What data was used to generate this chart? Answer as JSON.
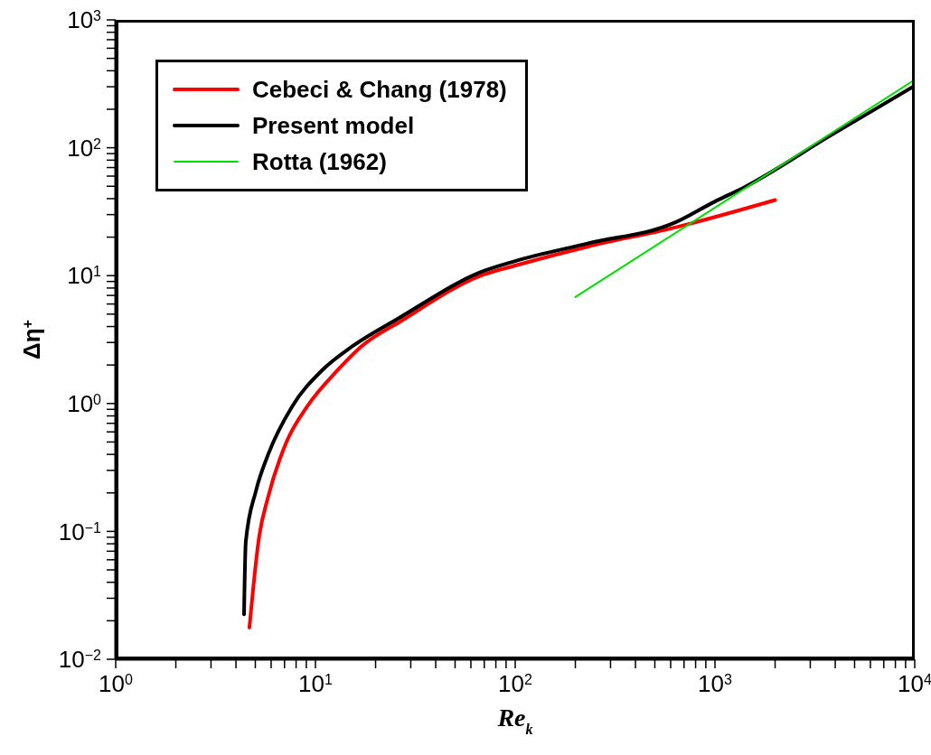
{
  "chart_data": {
    "type": "line",
    "xlabel": "Re$_{k}$",
    "ylabel": "Δη$^{+}$",
    "log": "xy",
    "grid": false,
    "legend": "top left",
    "marker": "none",
    "line_style": "solid",
    "xlim": [
      1,
      10000
    ],
    "ylim": [
      0.01,
      1000
    ],
    "xticks": [
      {
        "value": 1,
        "label": "10$^{0}$"
      },
      {
        "value": 2,
        "label": null
      },
      {
        "value": 3,
        "label": null
      },
      {
        "value": 4,
        "label": null
      },
      {
        "value": 5,
        "label": null
      },
      {
        "value": 6,
        "label": null
      },
      {
        "value": 7,
        "label": null
      },
      {
        "value": 8,
        "label": null
      },
      {
        "value": 9,
        "label": null
      },
      {
        "value": 10,
        "label": "10$^{1}$"
      },
      {
        "value": 20,
        "label": null
      },
      {
        "value": 30,
        "label": null
      },
      {
        "value": 40,
        "label": null
      },
      {
        "value": 50,
        "label": null
      },
      {
        "value": 60,
        "label": null
      },
      {
        "value": 70,
        "label": null
      },
      {
        "value": 80,
        "label": null
      },
      {
        "value": 90,
        "label": null
      },
      {
        "value": 100,
        "label": "10$^{2}$"
      },
      {
        "value": 200,
        "label": null
      },
      {
        "value": 300,
        "label": null
      },
      {
        "value": 400,
        "label": null
      },
      {
        "value": 500,
        "label": null
      },
      {
        "value": 600,
        "label": null
      },
      {
        "value": 700,
        "label": null
      },
      {
        "value": 800,
        "label": null
      },
      {
        "value": 900,
        "label": null
      },
      {
        "value": 1000,
        "label": "10$^{3}$"
      },
      {
        "value": 2000,
        "label": null
      },
      {
        "value": 3000,
        "label": null
      },
      {
        "value": 4000,
        "label": null
      },
      {
        "value": 5000,
        "label": null
      },
      {
        "value": 6000,
        "label": null
      },
      {
        "value": 7000,
        "label": null
      },
      {
        "value": 8000,
        "label": null
      },
      {
        "value": 9000,
        "label": null
      },
      {
        "value": 10000,
        "label": "10$^{4}$"
      }
    ],
    "yticks": [
      {
        "value": 0.01,
        "label": "10$^{−2}$"
      },
      {
        "value": 0.02,
        "label": null
      },
      {
        "value": 0.03,
        "label": null
      },
      {
        "value": 0.04,
        "label": null
      },
      {
        "value": 0.05,
        "label": null
      },
      {
        "value": 0.06,
        "label": null
      },
      {
        "value": 0.07,
        "label": null
      },
      {
        "value": 0.08,
        "label": null
      },
      {
        "value": 0.09,
        "label": null
      },
      {
        "value": 0.1,
        "label": "10$^{−1}$"
      },
      {
        "value": 0.2,
        "label": null
      },
      {
        "value": 0.3,
        "label": null
      },
      {
        "value": 0.4,
        "label": null
      },
      {
        "value": 0.5,
        "label": null
      },
      {
        "value": 0.6,
        "label": null
      },
      {
        "value": 0.7,
        "label": null
      },
      {
        "value": 0.8,
        "label": null
      },
      {
        "value": 0.9,
        "label": null
      },
      {
        "value": 1,
        "label": "10$^{0}$"
      },
      {
        "value": 2,
        "label": null
      },
      {
        "value": 3,
        "label": null
      },
      {
        "value": 4,
        "label": null
      },
      {
        "value": 5,
        "label": null
      },
      {
        "value": 6,
        "label": null
      },
      {
        "value": 7,
        "label": null
      },
      {
        "value": 8,
        "label": null
      },
      {
        "value": 9,
        "label": null
      },
      {
        "value": 10,
        "label": "10$^{1}$"
      },
      {
        "value": 20,
        "label": null
      },
      {
        "value": 30,
        "label": null
      },
      {
        "value": 40,
        "label": null
      },
      {
        "value": 50,
        "label": null
      },
      {
        "value": 60,
        "label": null
      },
      {
        "value": 70,
        "label": null
      },
      {
        "value": 80,
        "label": null
      },
      {
        "value": 90,
        "label": null
      },
      {
        "value": 100,
        "label": "10$^{2}$"
      },
      {
        "value": 200,
        "label": null
      },
      {
        "value": 300,
        "label": null
      },
      {
        "value": 400,
        "label": null
      },
      {
        "value": 500,
        "label": null
      },
      {
        "value": 600,
        "label": null
      },
      {
        "value": 700,
        "label": null
      },
      {
        "value": 800,
        "label": null
      },
      {
        "value": 900,
        "label": null
      },
      {
        "value": 1000,
        "label": "10$^{3}$"
      }
    ],
    "series": [
      {
        "name": "Cebeci & Chang (1978)",
        "color": "#ff0000",
        "x": [
          4.67,
          5.23,
          5.8,
          7.14,
          9.1,
          12.9,
          17,
          26.7,
          69.7,
          100,
          232,
          631,
          2000
        ],
        "values": [
          0.0177,
          0.092,
          0.187,
          0.495,
          0.95,
          1.82,
          2.8,
          4.4,
          10.2,
          12,
          16.9,
          23.8,
          39
        ]
      },
      {
        "name": "Present model",
        "color": "#000000",
        "x": [
          4.39,
          4.48,
          5.04,
          5.8,
          7.65,
          10.8,
          15.3,
          25.8,
          69.7,
          100,
          232,
          631,
          1000,
          1400,
          3800,
          10000
        ],
        "values": [
          0.0225,
          0.083,
          0.208,
          0.4,
          0.95,
          1.82,
          2.8,
          4.6,
          10.9,
          13,
          17.9,
          26,
          38,
          49,
          125,
          305
        ]
      },
      {
        "name": "Rotta (1962)",
        "color": "#00e000",
        "x": [
          200,
          1000,
          10000
        ],
        "values": [
          6.8,
          34,
          340
        ]
      }
    ]
  }
}
